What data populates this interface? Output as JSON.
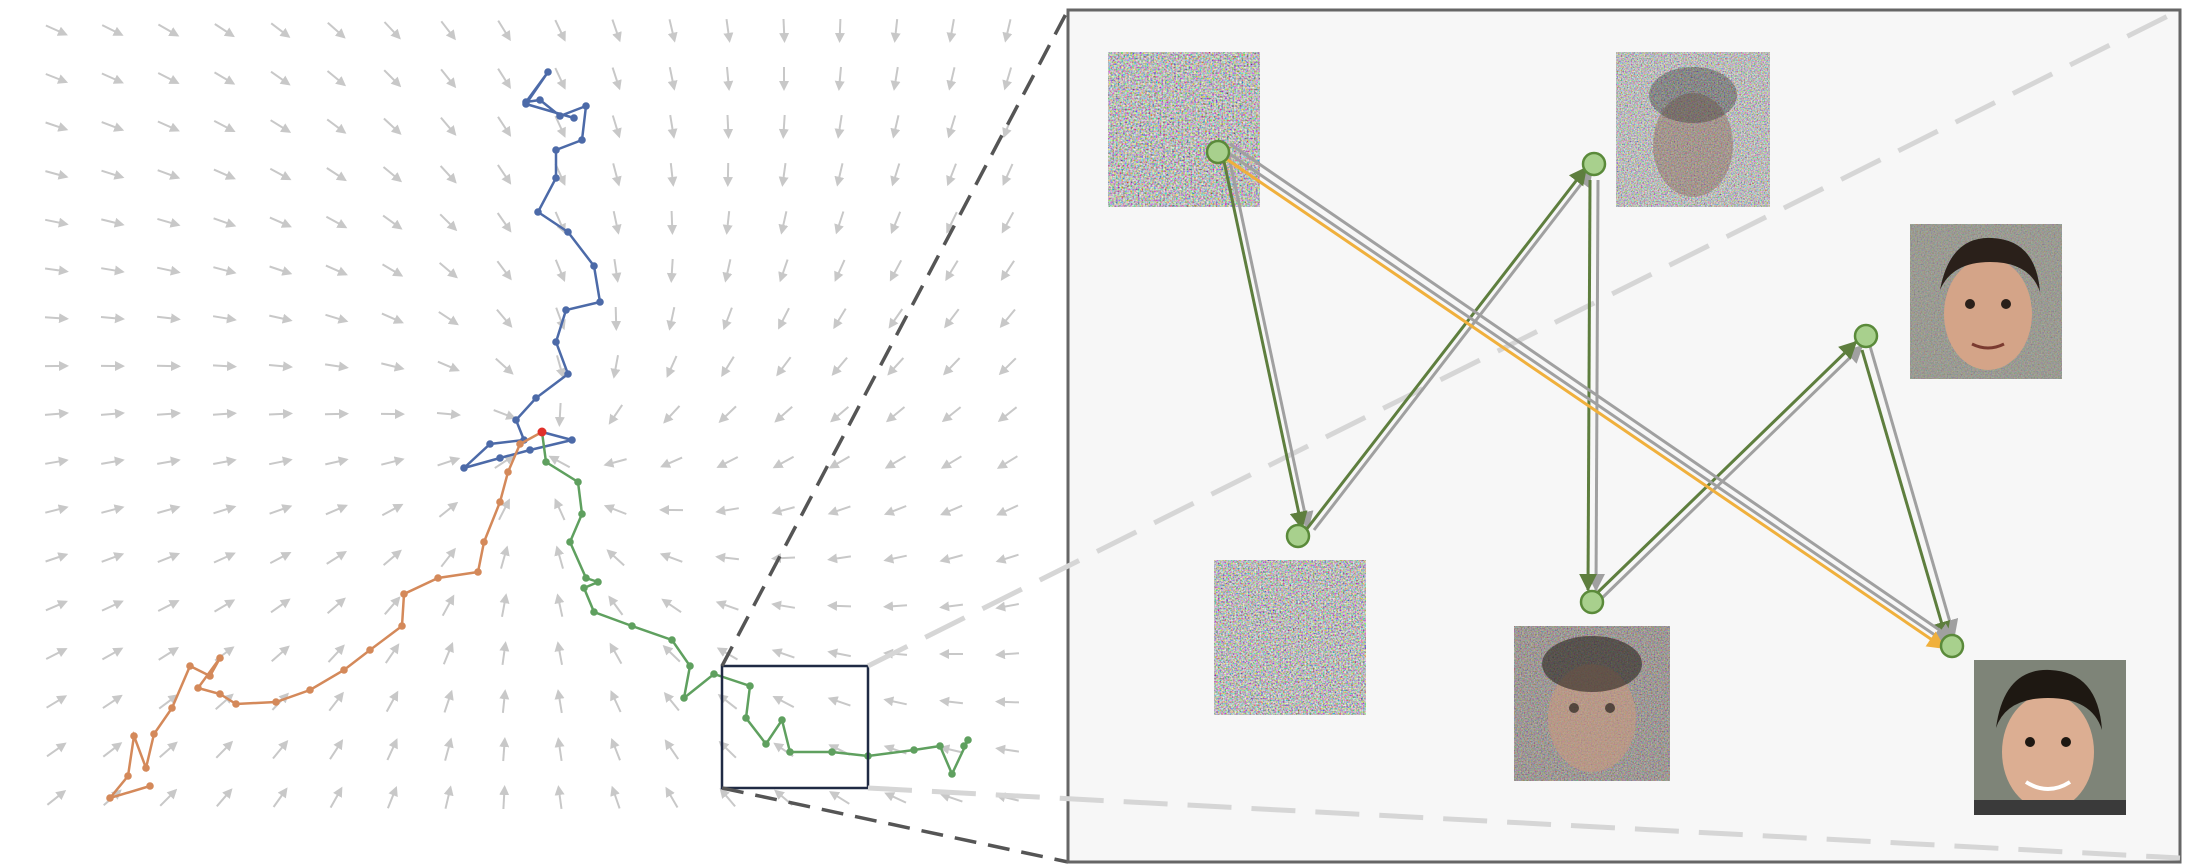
{
  "figure": {
    "left_panel": "vector-field-with-trajectories",
    "right_panel": "zoomed-inset-with-noise-to-image-samples"
  },
  "colors": {
    "field_arrow": "#c8c8c8",
    "traj_blue": "#4c6aa8",
    "traj_orange": "#d4895a",
    "traj_green": "#5fa05f",
    "start_point": "#e0302a",
    "zoom_box": "#1f2a44",
    "zoom_lines": "#555555",
    "zoom_lines_light": "#d6d6d6",
    "inset_bg": "#f7f7f7",
    "inset_border": "#666666",
    "node_fill": "#a8d08d",
    "node_stroke": "#5a8a3a",
    "arrow_gray": "#a0a0a0",
    "arrow_green": "#5e7e3e",
    "arrow_orange": "#f0b03c"
  },
  "inset": {
    "thumbnails": [
      {
        "id": "noise-1",
        "noise_level": 1.0,
        "icon": "pure-noise-thumbnail"
      },
      {
        "id": "noise-2",
        "noise_level": 0.95,
        "icon": "pure-noise-thumbnail"
      },
      {
        "id": "noise-3",
        "noise_level": 0.75,
        "icon": "noisy-face-thumbnail"
      },
      {
        "id": "noise-4",
        "noise_level": 0.55,
        "icon": "noisy-face-thumbnail"
      },
      {
        "id": "noise-5",
        "noise_level": 0.25,
        "icon": "face-thumbnail"
      },
      {
        "id": "noise-6",
        "noise_level": 0.08,
        "icon": "clean-face-thumbnail"
      }
    ]
  }
}
